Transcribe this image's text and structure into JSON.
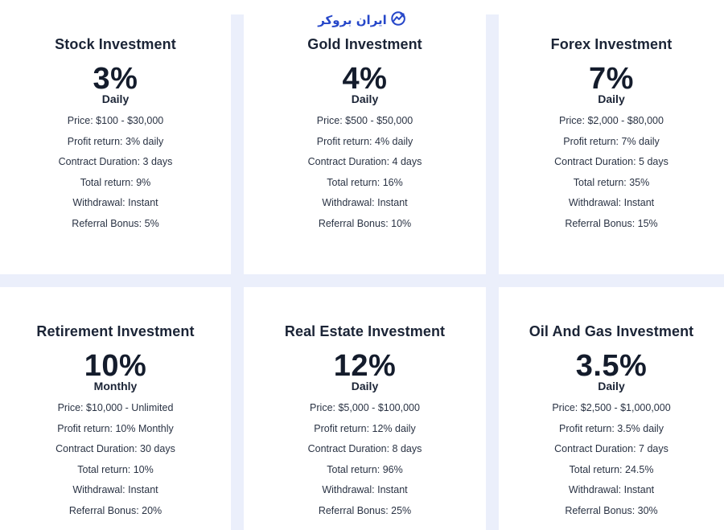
{
  "watermark": {
    "text": "ایران بروکر",
    "icon": "chart-trend-icon",
    "color": "#2647c9"
  },
  "colors": {
    "background": "#ebeffb",
    "card": "#ffffff",
    "text": "#1b2436"
  },
  "plans": [
    {
      "title": "Stock Investment",
      "rate": "3%",
      "period": "Daily",
      "details": [
        "Price: $100 - $30,000",
        "Profit return: 3% daily",
        "Contract Duration: 3 days",
        "Total return: 9%",
        "Withdrawal: Instant",
        "Referral Bonus: 5%"
      ]
    },
    {
      "title": "Gold Investment",
      "rate": "4%",
      "period": "Daily",
      "details": [
        "Price: $500 - $50,000",
        "Profit return: 4% daily",
        "Contract Duration: 4 days",
        "Total return: 16%",
        "Withdrawal: Instant",
        "Referral Bonus: 10%"
      ]
    },
    {
      "title": "Forex Investment",
      "rate": "7%",
      "period": "Daily",
      "details": [
        "Price: $2,000 - $80,000",
        "Profit return: 7% daily",
        "Contract Duration: 5 days",
        "Total return: 35%",
        "Withdrawal: Instant",
        "Referral Bonus: 15%"
      ]
    },
    {
      "title": "Retirement Investment",
      "rate": "10%",
      "period": "Monthly",
      "details": [
        "Price: $10,000 - Unlimited",
        "Profit return: 10% Monthly",
        "Contract Duration: 30 days",
        "Total return: 10%",
        "Withdrawal: Instant",
        "Referral Bonus: 20%"
      ]
    },
    {
      "title": "Real Estate Investment",
      "rate": "12%",
      "period": "Daily",
      "details": [
        "Price: $5,000 - $100,000",
        "Profit return: 12% daily",
        "Contract Duration: 8 days",
        "Total return: 96%",
        "Withdrawal: Instant",
        "Referral Bonus: 25%"
      ]
    },
    {
      "title": "Oil And Gas Investment",
      "rate": "3.5%",
      "period": "Daily",
      "details": [
        "Price: $2,500 - $1,000,000",
        "Profit return: 3.5% daily",
        "Contract Duration: 7 days",
        "Total return: 24.5%",
        "Withdrawal: Instant",
        "Referral Bonus: 30%"
      ]
    }
  ]
}
